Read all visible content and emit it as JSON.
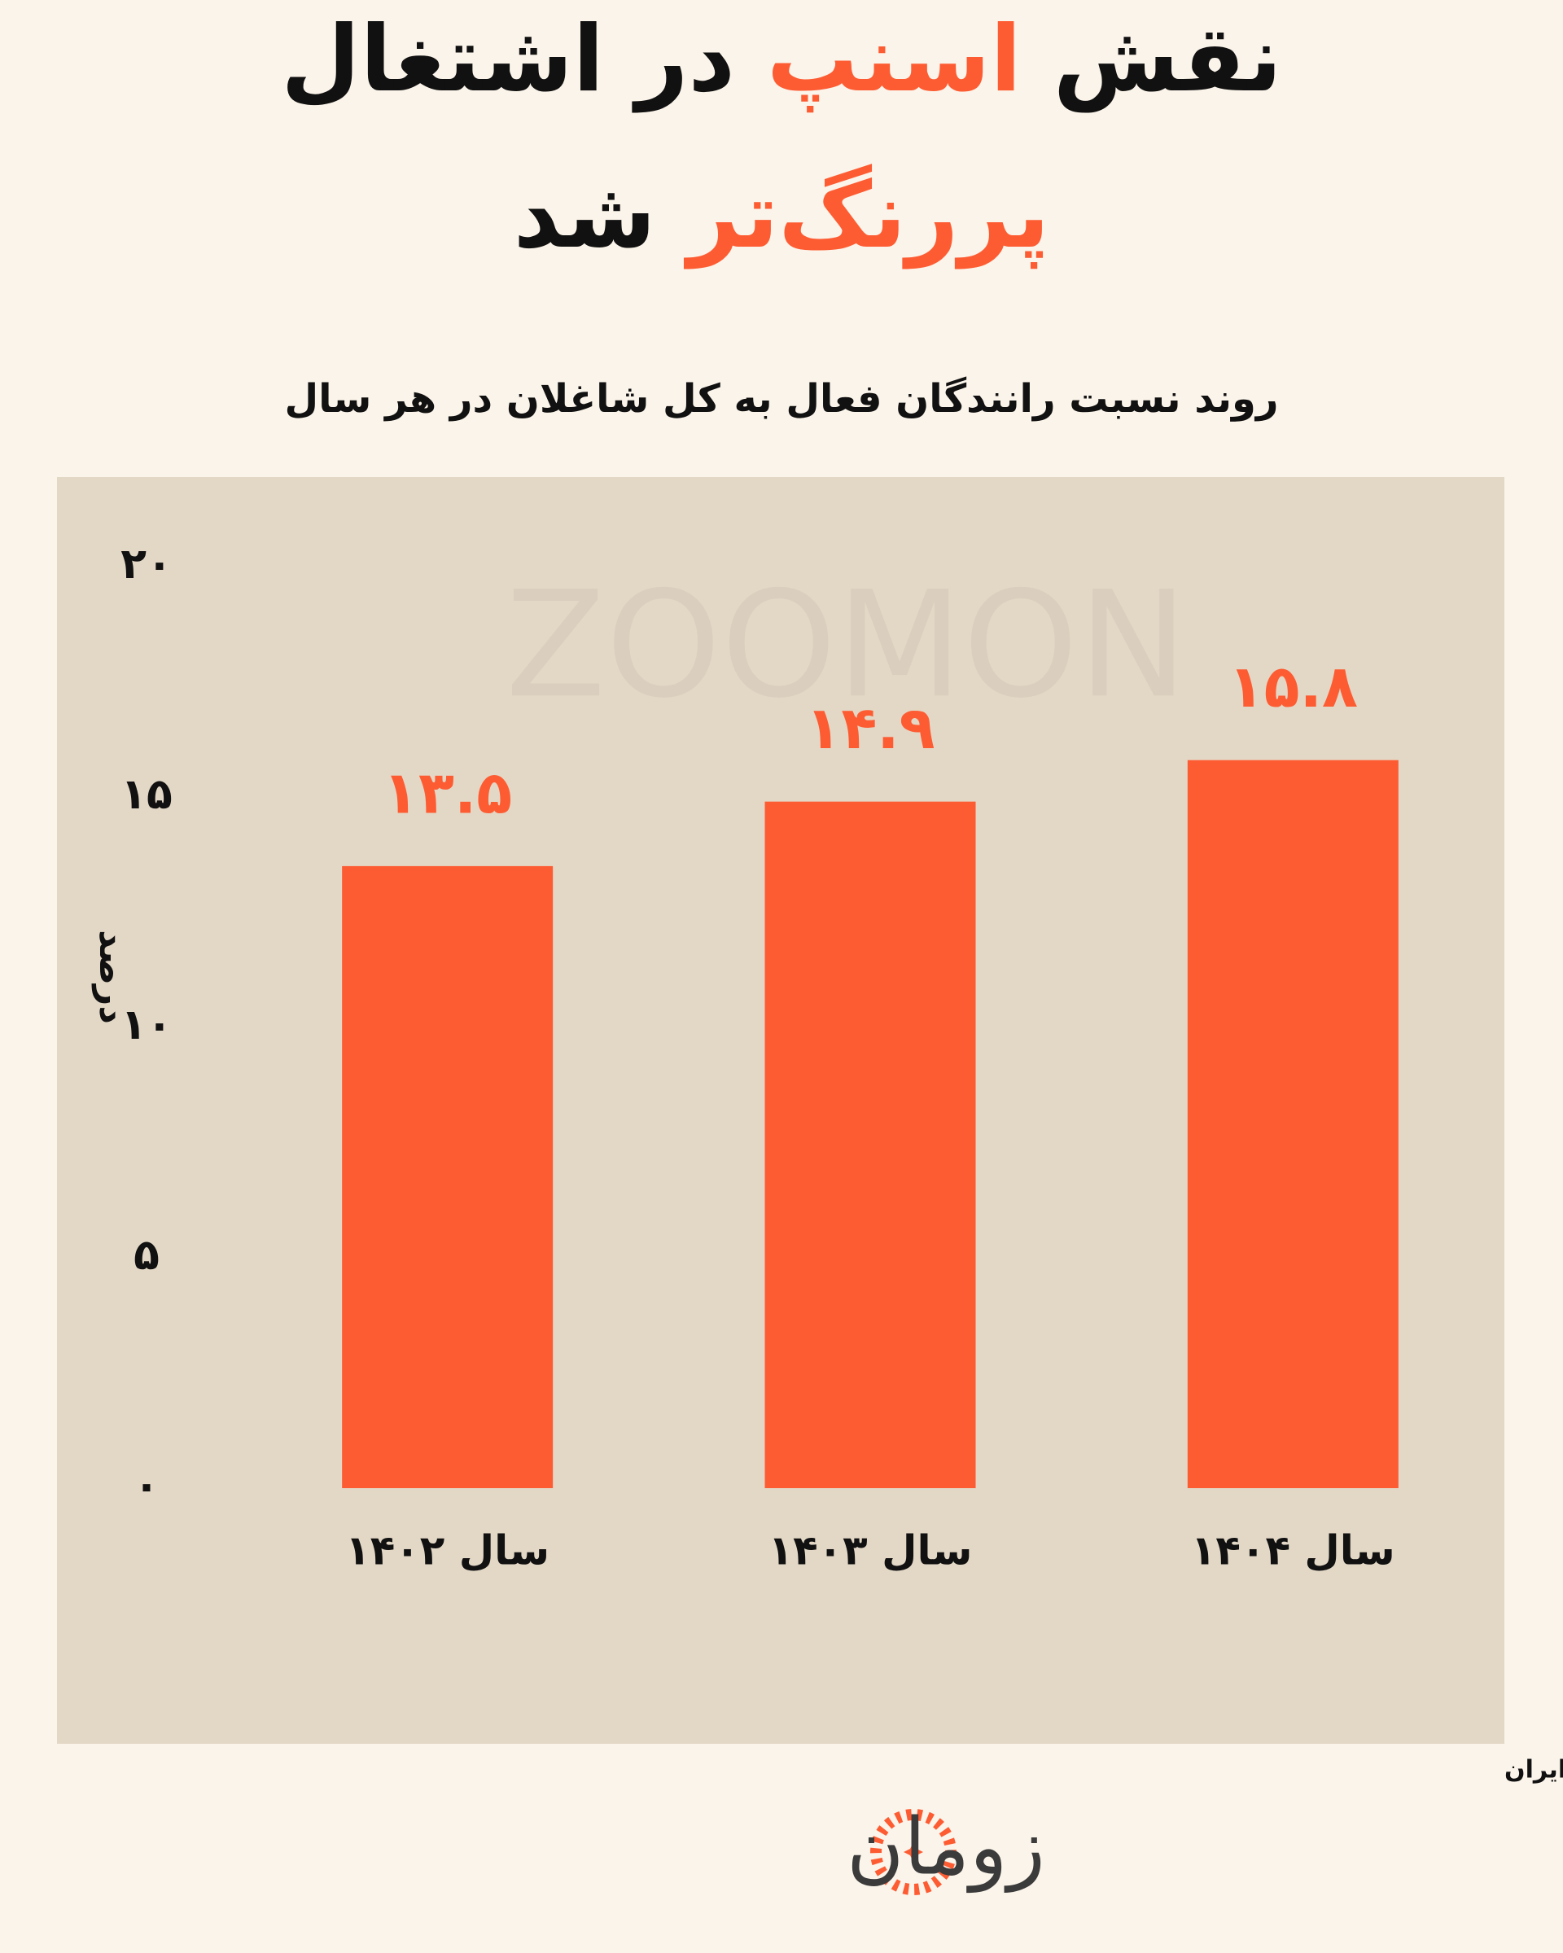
{
  "chart_data": {
    "type": "bar",
    "title": {
      "lines": [
        [
          {
            "text": "نقش ",
            "color": "#111111"
          },
          {
            "text": "اسنپ",
            "color": "#fd5c33"
          },
          {
            "text": " در اشتغال",
            "color": "#111111"
          }
        ],
        [
          {
            "text": "پررنگ‌تر",
            "color": "#fd5c33"
          },
          {
            "text": " شد",
            "color": "#111111"
          }
        ]
      ]
    },
    "subtitle": "روند نسبت رانندگان فعال به کل شاغلان در هر سال",
    "y_label": "درصد",
    "categories": [
      "سال ۱۴۰۲",
      "سال ۱۴۰۳",
      "سال ۱۴۰۴"
    ],
    "values": [
      13.5,
      14.9,
      15.8
    ],
    "value_labels": [
      "۱۳.۵",
      "۱۴.۹",
      "۱۵.۸"
    ],
    "color": "#fd5c33",
    "ylim": [
      0,
      20
    ],
    "yticks": [
      {
        "value": 0,
        "label": "۰"
      },
      {
        "value": 5,
        "label": "۵"
      },
      {
        "value": 10,
        "label": "۱۰"
      },
      {
        "value": 15,
        "label": "۱۵"
      },
      {
        "value": 20,
        "label": "۲۰"
      }
    ],
    "grid": false,
    "watermark": "ZOOMON",
    "source": "منبع داده: اسنپ و مرکز آمار ایران",
    "logo": "زومان"
  }
}
